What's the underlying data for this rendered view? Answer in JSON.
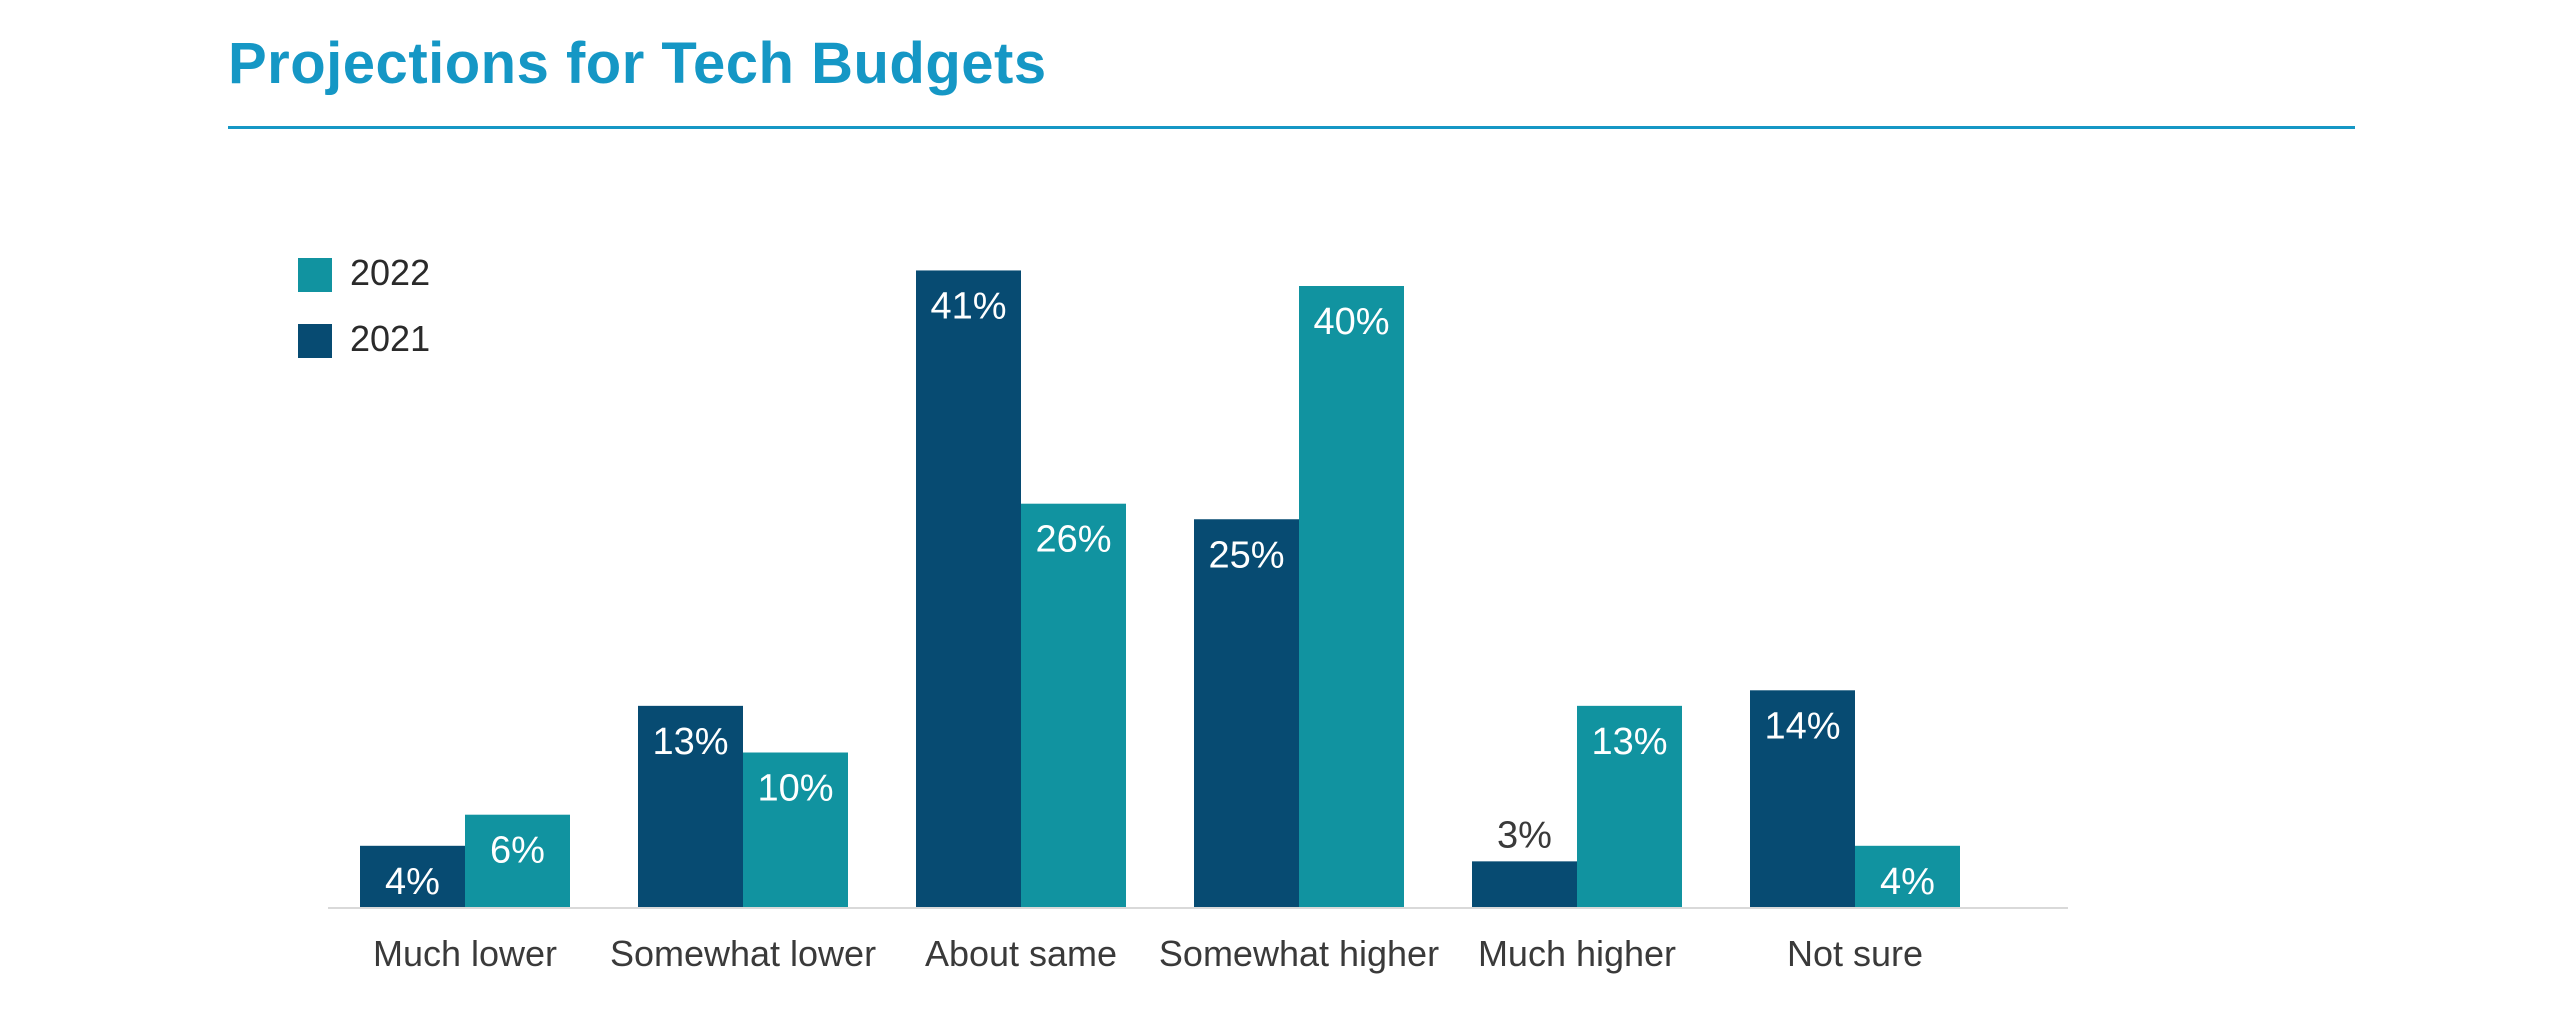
{
  "title": "Projections for Tech Budgets",
  "colors": {
    "title": "#1597c5",
    "s2021": "#074b72",
    "s2022": "#1193a0",
    "axis": "#d9d9d9"
  },
  "chart_data": {
    "type": "bar",
    "title": "Projections for Tech Budgets",
    "xlabel": "",
    "ylabel": "",
    "ylim": [
      0,
      45
    ],
    "grid": false,
    "legend_position": "top-left",
    "categories": [
      "Much lower",
      "Somewhat lower",
      "About same",
      "Somewhat higher",
      "Much higher",
      "Not sure"
    ],
    "series": [
      {
        "name": "2021",
        "color": "#074b72",
        "values": [
          4,
          13,
          41,
          25,
          3,
          14
        ],
        "labels": [
          "4%",
          "13%",
          "41%",
          "25%",
          "3%",
          "14%"
        ]
      },
      {
        "name": "2022",
        "color": "#1193a0",
        "values": [
          6,
          10,
          26,
          40,
          13,
          4
        ],
        "labels": [
          "6%",
          "10%",
          "26%",
          "40%",
          "13%",
          "4%"
        ]
      }
    ],
    "legend": [
      "2022",
      "2021"
    ]
  }
}
